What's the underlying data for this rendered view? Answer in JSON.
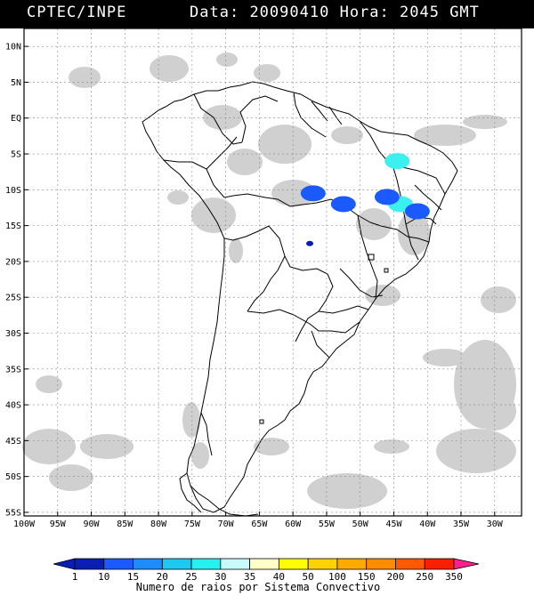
{
  "header": {
    "organization": "CPTEC/INPE",
    "date_label": "Data:",
    "date_value": "20090410",
    "time_label": "Hora:",
    "time_value": "2045 GMT"
  },
  "map": {
    "lat_labels": [
      "10N",
      "5N",
      "EQ",
      "5S",
      "10S",
      "15S",
      "20S",
      "25S",
      "30S",
      "35S",
      "40S",
      "45S",
      "50S",
      "55S"
    ],
    "lat_values": [
      10,
      5,
      0,
      -5,
      -10,
      -15,
      -20,
      -25,
      -30,
      -35,
      -40,
      -45,
      -50,
      -55
    ],
    "lon_labels": [
      "100W",
      "95W",
      "90W",
      "85W",
      "80W",
      "75W",
      "70W",
      "65W",
      "60W",
      "55W",
      "50W",
      "45W",
      "40W",
      "35W",
      "30W"
    ],
    "lon_values": [
      -100,
      -95,
      -90,
      -85,
      -80,
      -75,
      -70,
      -65,
      -60,
      -55,
      -50,
      -45,
      -40,
      -35,
      -30
    ],
    "extent": {
      "lon_min": -100,
      "lon_max": -26,
      "lat_min": -55.5,
      "lat_max": 12.5
    },
    "colors": {
      "cloud": "#c8c8c8",
      "border": "#000000",
      "grid": "#888888"
    },
    "storm_clusters": [
      {
        "lon": -57,
        "lat": -10.5,
        "count_class": "10-15",
        "color": "#1a5aff"
      },
      {
        "lon": -52.5,
        "lat": -12,
        "count_class": "10-15",
        "color": "#1a5aff"
      },
      {
        "lon": -57.5,
        "lat": -17.5,
        "count_class": "1-10",
        "color": "#0a1eb4"
      },
      {
        "lon": -44.5,
        "lat": -6,
        "count_class": "20-25",
        "color": "#3cf0f0"
      },
      {
        "lon": -44,
        "lat": -12,
        "count_class": "20-25",
        "color": "#3cf0f0"
      },
      {
        "lon": -46,
        "lat": -11,
        "count_class": "10-15",
        "color": "#1a5aff"
      },
      {
        "lon": -41.5,
        "lat": -13,
        "count_class": "10-15",
        "color": "#1a5aff"
      }
    ]
  },
  "legend": {
    "labels": [
      "1",
      "10",
      "15",
      "20",
      "25",
      "30",
      "35",
      "40",
      "50",
      "100",
      "150",
      "200",
      "250",
      "350"
    ],
    "colors": [
      "#0a1eb4",
      "#1a5aff",
      "#1e8cff",
      "#1ec8f0",
      "#28f0f0",
      "#c8fafa",
      "#ffffc8",
      "#ffff00",
      "#ffd200",
      "#ffaa00",
      "#ff8c00",
      "#ff5a00",
      "#ff1e00",
      "#ff1e8c"
    ],
    "title": "Numero de raios por Sistema Convectivo"
  }
}
